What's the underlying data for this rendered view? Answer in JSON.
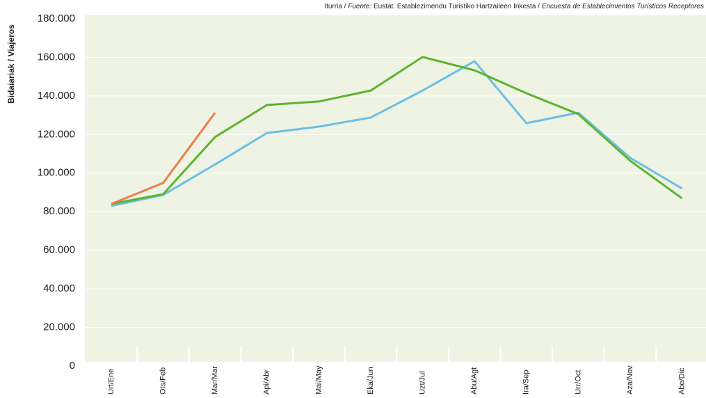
{
  "chart_data": {
    "type": "line",
    "source": {
      "label": "Iturria /",
      "label_es": "Fuente:",
      "text": "Eustat. Establezimendu Turistiko Hartzaileen Inkesta /",
      "text_es": "Encuesta de Establecimientos Turísticos Receptores"
    },
    "y_label": "Bidaiariak / Viajeros",
    "categories": [
      "Urt/Ene",
      "Ots/Feb",
      "Mar/Mar",
      "Api/Abr",
      "Mai/May",
      "Eka/Jun",
      "Uzt/Jul",
      "Abu/Agt",
      "Ira/Sep",
      "Urr/Oct",
      "Aza/Nov",
      "Abe/Dic"
    ],
    "series": [
      {
        "color": "#6cbfe6",
        "values": [
          83000,
          88700,
          104500,
          120800,
          124100,
          128800,
          142800,
          158000,
          125900,
          131300,
          107900,
          92000
        ]
      },
      {
        "color": "#5db42e",
        "values": [
          84000,
          89100,
          118700,
          135300,
          137100,
          142800,
          160200,
          153300,
          141400,
          130600,
          106400,
          86900
        ]
      },
      {
        "color": "#e8804a",
        "values": [
          84000,
          94900,
          131300,
          null,
          null,
          null,
          null,
          null,
          null,
          null,
          null,
          null
        ]
      }
    ],
    "ylim": [
      0,
      180000
    ],
    "yticks": [
      0,
      {
        "value": 20000,
        "label": "20.000"
      },
      {
        "value": 40000,
        "label": "40.000"
      },
      {
        "value": 60000,
        "label": "60.000"
      },
      {
        "value": 80000,
        "label": "80.000"
      },
      {
        "value": 100000,
        "label": "100.000"
      },
      {
        "value": 120000,
        "label": "120.000"
      },
      {
        "value": 140000,
        "label": "140.000"
      },
      {
        "value": 160000,
        "label": "160.000"
      },
      {
        "value": 180000,
        "label": "180.000"
      }
    ],
    "grid": true
  }
}
